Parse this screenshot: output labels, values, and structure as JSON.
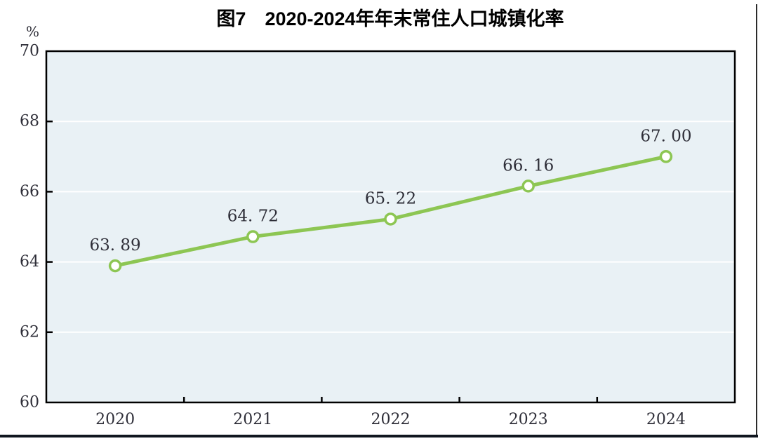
{
  "page": {
    "right_border_color": "#2b2b2b",
    "footer_rule_color": "#10161f"
  },
  "chart_data": {
    "type": "line",
    "title": "图7　2020-2024年年末常住人口城镇化率",
    "unit_label": "%",
    "categories": [
      "2020",
      "2021",
      "2022",
      "2023",
      "2024"
    ],
    "values": [
      63.89,
      64.72,
      65.22,
      66.16,
      67.0
    ],
    "point_labels": [
      "63. 89",
      "64. 72",
      "65. 22",
      "66. 16",
      "67. 00"
    ],
    "ylim": [
      60,
      70
    ],
    "yticks": [
      60,
      62,
      64,
      66,
      68,
      70
    ],
    "grid": true,
    "legend": "none",
    "colors": {
      "line": "#8dc653",
      "marker_fill": "#ffffff",
      "marker_stroke": "#8dc653",
      "plot_background": "#e9f1f5",
      "gridline": "#ffffff",
      "axis_border": "#000000",
      "tick_text": "#2e2e38",
      "title_text": "#000000"
    }
  }
}
